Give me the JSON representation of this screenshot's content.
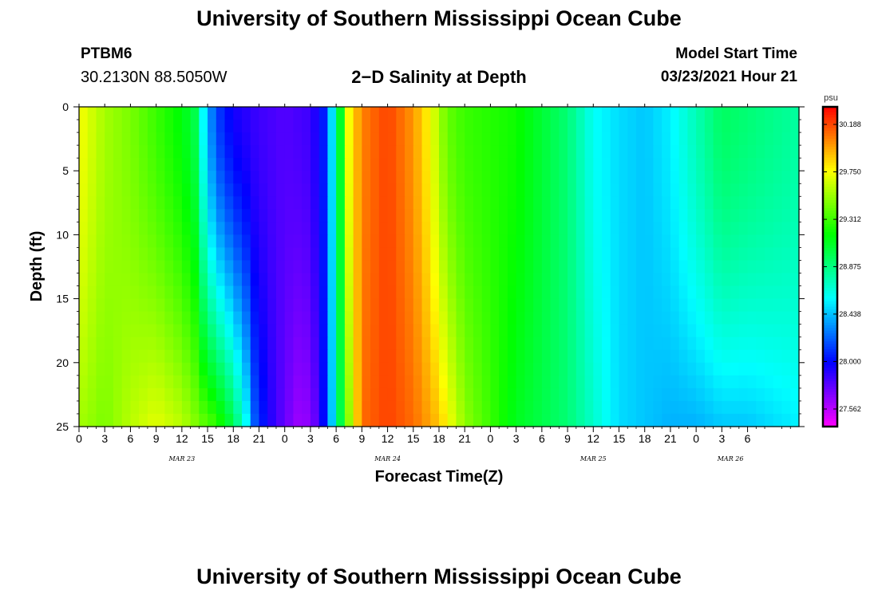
{
  "header": {
    "title": "University of Southern Mississippi Ocean Cube",
    "station_id": "PTBM6",
    "station_coords": "30.2130N 88.5050W",
    "plot_title": "2−D Salinity at Depth",
    "model_start_label": "Model Start Time",
    "model_start_value": "03/23/2021 Hour 21"
  },
  "footer": {
    "title": "University of Southern Mississippi Ocean Cube"
  },
  "chart_data": {
    "type": "heatmap",
    "title": "2-D Salinity at Depth",
    "xlabel": "Forecast Time(Z)",
    "ylabel": "Depth (ft)",
    "x_hours_since_start": [
      0,
      84
    ],
    "depth_range_ft": [
      0,
      25
    ],
    "y_ticks": [
      "0",
      "5",
      "10",
      "15",
      "20",
      "25"
    ],
    "x_ticks": [
      "0",
      "3",
      "6",
      "9",
      "12",
      "15",
      "18",
      "21",
      "0",
      "3",
      "6",
      "9",
      "12",
      "15",
      "18",
      "21",
      "0",
      "3",
      "6",
      "9",
      "12",
      "15",
      "18",
      "21",
      "0",
      "3",
      "6"
    ],
    "date_labels": [
      {
        "label": "MAR 23",
        "hour": 12
      },
      {
        "label": "MAR 24",
        "hour": 36
      },
      {
        "label": "MAR 25",
        "hour": 60
      },
      {
        "label": "MAR 26",
        "hour": 76
      }
    ],
    "colorbar": {
      "unit": "psu",
      "range": [
        27.4,
        30.35
      ],
      "ticks": [
        "30.188",
        "29.750",
        "29.312",
        "28.875",
        "28.438",
        "28.000",
        "27.562"
      ]
    },
    "surface_salinity_psu": [
      [
        0,
        29.75
      ],
      [
        3,
        29.55
      ],
      [
        6,
        29.45
      ],
      [
        9,
        29.3
      ],
      [
        12,
        29.15
      ],
      [
        13.5,
        29.0
      ],
      [
        14,
        28.75
      ],
      [
        15,
        28.4
      ],
      [
        16,
        28.15
      ],
      [
        18,
        27.95
      ],
      [
        21,
        27.85
      ],
      [
        24,
        27.8
      ],
      [
        27,
        27.85
      ],
      [
        28.5,
        28.05
      ],
      [
        29.5,
        28.5
      ],
      [
        30.2,
        28.85
      ],
      [
        30.8,
        29.3
      ],
      [
        31.5,
        29.75
      ],
      [
        33,
        30.05
      ],
      [
        36,
        30.2
      ],
      [
        39,
        30.0
      ],
      [
        41,
        29.75
      ],
      [
        42,
        29.55
      ],
      [
        43,
        29.4
      ],
      [
        45,
        29.3
      ],
      [
        48,
        29.25
      ],
      [
        51,
        29.2
      ],
      [
        54,
        29.05
      ],
      [
        57,
        28.9
      ],
      [
        58.5,
        28.75
      ],
      [
        60,
        28.6
      ],
      [
        63,
        28.5
      ],
      [
        66,
        28.45
      ],
      [
        69,
        28.55
      ],
      [
        72,
        28.75
      ],
      [
        75,
        28.95
      ],
      [
        78,
        28.9
      ],
      [
        81,
        28.85
      ],
      [
        84,
        28.8
      ]
    ],
    "depth_25ft_salinity_psu": [
      [
        0,
        29.55
      ],
      [
        3,
        29.45
      ],
      [
        6,
        29.6
      ],
      [
        9,
        29.7
      ],
      [
        12,
        29.6
      ],
      [
        14.5,
        29.4
      ],
      [
        16,
        29.3
      ],
      [
        18,
        29.0
      ],
      [
        19.5,
        28.6
      ],
      [
        20.5,
        28.2
      ],
      [
        22,
        27.95
      ],
      [
        24,
        27.75
      ],
      [
        26,
        27.6
      ],
      [
        28,
        27.8
      ],
      [
        29,
        28.2
      ],
      [
        30,
        28.7
      ],
      [
        31,
        29.3
      ],
      [
        33,
        30.1
      ],
      [
        36,
        30.2
      ],
      [
        39,
        30.1
      ],
      [
        42,
        29.9
      ],
      [
        45,
        29.5
      ],
      [
        48,
        29.3
      ],
      [
        51,
        29.1
      ],
      [
        54,
        29.0
      ],
      [
        57,
        28.9
      ],
      [
        60,
        28.7
      ],
      [
        63,
        28.5
      ],
      [
        66,
        28.45
      ],
      [
        69,
        28.4
      ],
      [
        72,
        28.4
      ],
      [
        75,
        28.45
      ],
      [
        78,
        28.45
      ],
      [
        81,
        28.5
      ],
      [
        84,
        28.55
      ]
    ],
    "front_positions_hours": {
      "low_front_left_surface": 14.5,
      "low_front_left_bottom": 19.5,
      "low_front_right_surface": 30.3,
      "low_front_right_bottom": 29.0,
      "high_core_surface": 36,
      "high_core_bottom": 37
    }
  }
}
